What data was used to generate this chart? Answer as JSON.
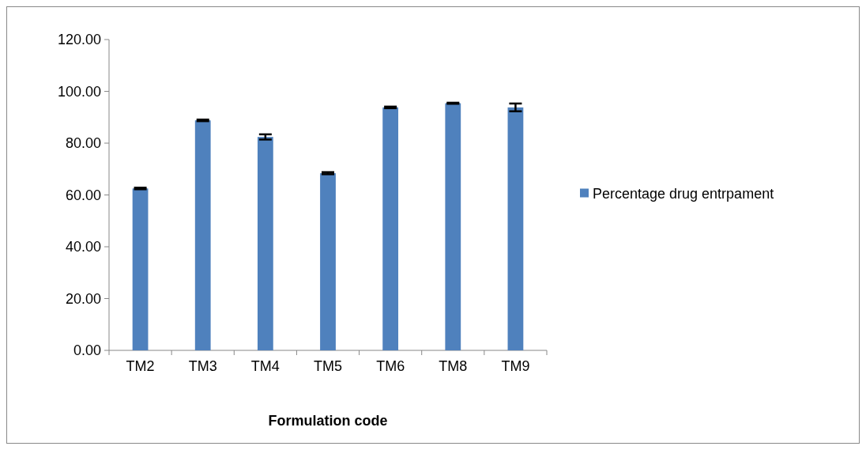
{
  "chart_data": {
    "type": "bar",
    "xlabel": "Formulation code",
    "categories": [
      "TM2",
      "TM3",
      "TM4",
      "TM5",
      "TM6",
      "TM8",
      "TM9"
    ],
    "series": [
      {
        "name": "Percentage drug entrpament",
        "color": "#4f81bd",
        "values": [
          62.5,
          88.8,
          82.4,
          68.4,
          93.8,
          95.4,
          93.8
        ],
        "errors": [
          0.3,
          0.3,
          1.0,
          0.4,
          0.3,
          0.2,
          1.5
        ]
      }
    ],
    "ylim": [
      0,
      120
    ],
    "yticks": [
      {
        "value": 0,
        "label": "0.00"
      },
      {
        "value": 20,
        "label": "20.00"
      },
      {
        "value": 40,
        "label": "40.00"
      },
      {
        "value": 60,
        "label": "60.00"
      },
      {
        "value": 80,
        "label": "80.00"
      },
      {
        "value": 100,
        "label": "100.00"
      },
      {
        "value": 120,
        "label": "120.00"
      }
    ],
    "legend": "right"
  }
}
